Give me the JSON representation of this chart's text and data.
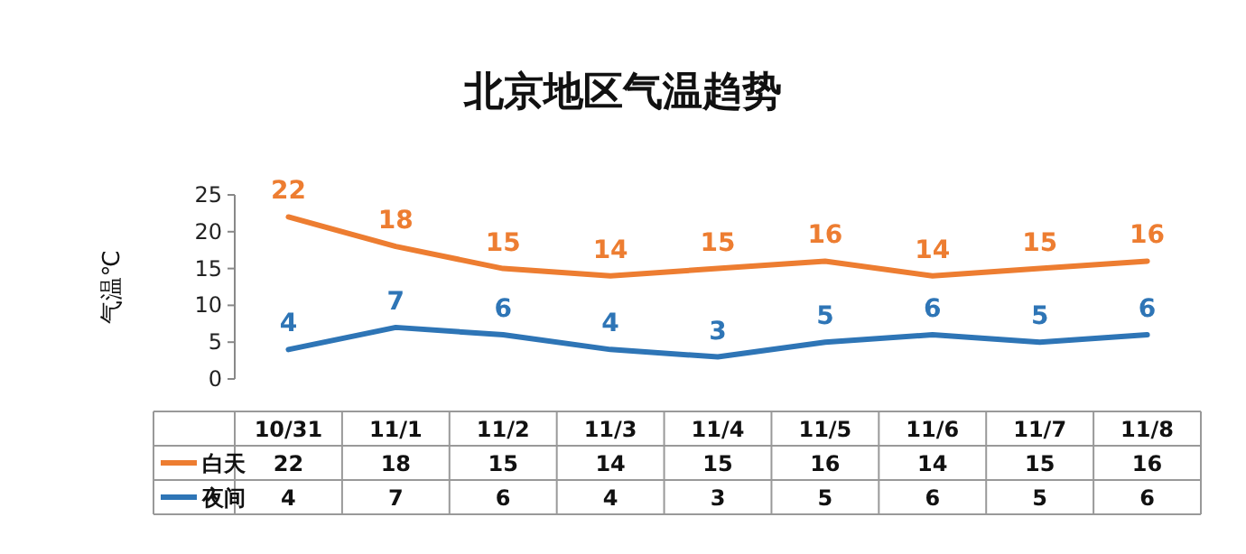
{
  "chart_data": {
    "type": "line",
    "title": "北京地区气温趋势",
    "ylabel": "气温℃",
    "categories": [
      "10/31",
      "11/1",
      "11/2",
      "11/3",
      "11/4",
      "11/5",
      "11/6",
      "11/7",
      "11/8"
    ],
    "series": [
      {
        "name": "白天",
        "color": "#ed7d31",
        "values": [
          22,
          18,
          15,
          14,
          15,
          16,
          14,
          15,
          16
        ]
      },
      {
        "name": "夜间",
        "color": "#2e75b6",
        "values": [
          4,
          7,
          6,
          4,
          3,
          5,
          6,
          5,
          6
        ]
      }
    ],
    "annotations": [
      "22",
      "18",
      "15",
      "14",
      "15",
      "16",
      "14",
      "15",
      "16",
      "4",
      "7",
      "6",
      "4",
      "3",
      "5",
      "6",
      "5",
      "6"
    ],
    "ylim": [
      0,
      25
    ],
    "yticks": [
      0,
      5,
      10,
      15,
      20,
      25
    ],
    "grid": false,
    "legend": "bottom",
    "data_labels": true,
    "marker": "none",
    "line_style": "solid"
  }
}
